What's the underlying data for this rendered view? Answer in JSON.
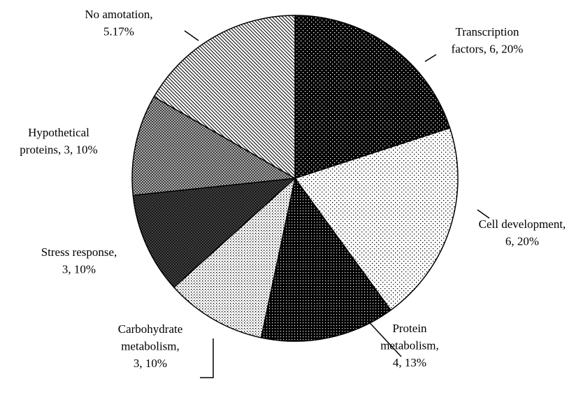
{
  "chart_data": {
    "type": "pie",
    "values": [
      6,
      6,
      4,
      3,
      3,
      3,
      5
    ],
    "value_labels": [
      [
        "Transcription",
        "factors, 6, 20%"
      ],
      [
        "Cell development,",
        "6, 20%"
      ],
      [
        "Protein",
        "metabolism,",
        "4, 13%"
      ],
      [
        "Carbohydrate",
        "metabolism,",
        "3, 10%"
      ],
      [
        "Stress response,",
        "3, 10%"
      ],
      [
        "Hypothetical",
        "proteins, 3, 10%"
      ],
      [
        "No amotation,",
        "5.17%"
      ]
    ]
  }
}
